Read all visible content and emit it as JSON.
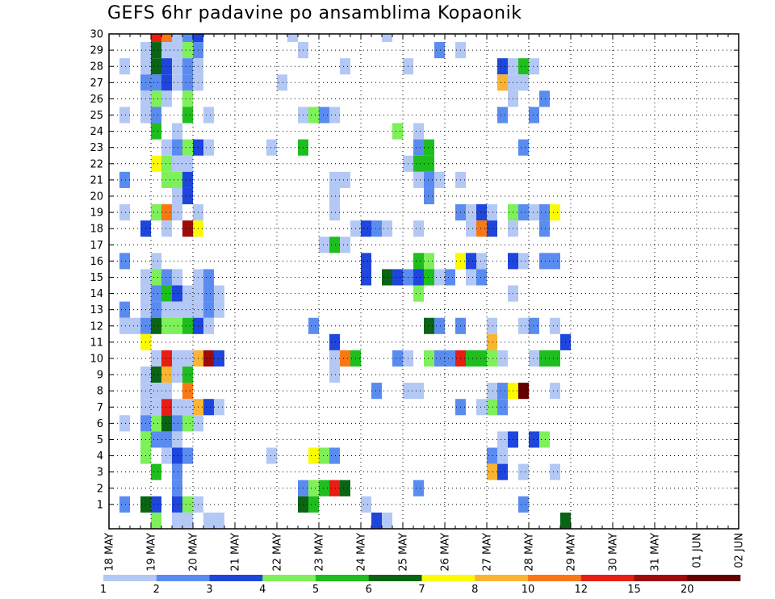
{
  "title": "GEFS 6hr padavine po ansamblima Kopaonik",
  "chart_data": {
    "type": "heatmap",
    "title": "GEFS 6hr padavine po ansamblima Kopaonik",
    "x_tick_labels": [
      "18 MAY",
      "19 MAY",
      "20 MAY",
      "21 MAY",
      "22 MAY",
      "23 MAY",
      "24 MAY",
      "25 MAY",
      "26 MAY",
      "27 MAY",
      "28 MAY",
      "29 MAY",
      "30 MAY",
      "31 MAY",
      "01 JUN",
      "02 JUN"
    ],
    "x_range_days": [
      0,
      15
    ],
    "y_tick_labels": [
      "1",
      "2",
      "3",
      "4",
      "5",
      "6",
      "7",
      "8",
      "9",
      "10",
      "11",
      "12",
      "13",
      "14",
      "15",
      "16",
      "17",
      "18",
      "19",
      "20",
      "21",
      "22",
      "23",
      "24",
      "25",
      "26",
      "27",
      "28",
      "29",
      "30"
    ],
    "y_range": [
      0,
      30
    ],
    "time_step_hours": 6,
    "grid": true,
    "legend": {
      "placement": "bottom",
      "boundaries": [
        "1",
        "2",
        "3",
        "4",
        "5",
        "6",
        "7",
        "8",
        "10",
        "12",
        "15",
        "20"
      ],
      "colors": [
        "#b4c8f5",
        "#5a8cf0",
        "#1e46dc",
        "#7df05a",
        "#1ebe1e",
        "#0a6414",
        "#fafa00",
        "#fab432",
        "#fa7814",
        "#e61e14",
        "#a00a0a",
        "#640000"
      ]
    },
    "cells_format": "[member, step_from_18MAY_00UTC(6h), level_index]",
    "cells": [
      [
        30,
        4,
        9
      ],
      [
        30,
        5,
        8
      ],
      [
        30,
        6,
        0
      ],
      [
        30,
        7,
        1
      ],
      [
        30,
        8,
        2
      ],
      [
        30,
        17,
        0
      ],
      [
        30,
        26,
        0
      ],
      [
        29,
        3,
        0
      ],
      [
        29,
        4,
        5
      ],
      [
        29,
        5,
        0
      ],
      [
        29,
        6,
        0
      ],
      [
        29,
        7,
        3
      ],
      [
        29,
        8,
        1
      ],
      [
        29,
        18,
        0
      ],
      [
        29,
        31,
        1
      ],
      [
        29,
        33,
        0
      ],
      [
        28,
        1,
        0
      ],
      [
        28,
        3,
        0
      ],
      [
        28,
        4,
        5
      ],
      [
        28,
        5,
        2
      ],
      [
        28,
        6,
        0
      ],
      [
        28,
        7,
        1
      ],
      [
        28,
        8,
        0
      ],
      [
        28,
        22,
        0
      ],
      [
        28,
        28,
        0
      ],
      [
        28,
        37,
        2
      ],
      [
        28,
        38,
        0
      ],
      [
        28,
        39,
        4
      ],
      [
        28,
        40,
        0
      ],
      [
        27,
        3,
        1
      ],
      [
        27,
        4,
        1
      ],
      [
        27,
        5,
        2
      ],
      [
        27,
        6,
        0
      ],
      [
        27,
        7,
        1
      ],
      [
        27,
        8,
        0
      ],
      [
        27,
        16,
        0
      ],
      [
        27,
        37,
        7
      ],
      [
        27,
        38,
        0
      ],
      [
        27,
        39,
        0
      ],
      [
        26,
        3,
        0
      ],
      [
        26,
        4,
        3
      ],
      [
        26,
        5,
        0
      ],
      [
        26,
        7,
        3
      ],
      [
        26,
        38,
        0
      ],
      [
        26,
        41,
        1
      ],
      [
        25,
        1,
        0
      ],
      [
        25,
        3,
        0
      ],
      [
        25,
        4,
        1
      ],
      [
        25,
        7,
        4
      ],
      [
        25,
        9,
        0
      ],
      [
        25,
        18,
        0
      ],
      [
        25,
        19,
        3
      ],
      [
        25,
        20,
        1
      ],
      [
        25,
        21,
        0
      ],
      [
        25,
        37,
        1
      ],
      [
        25,
        40,
        1
      ],
      [
        24,
        4,
        4
      ],
      [
        24,
        6,
        0
      ],
      [
        24,
        27,
        3
      ],
      [
        24,
        29,
        0
      ],
      [
        23,
        5,
        0
      ],
      [
        23,
        6,
        1
      ],
      [
        23,
        7,
        3
      ],
      [
        23,
        8,
        2
      ],
      [
        23,
        9,
        0
      ],
      [
        23,
        15,
        0
      ],
      [
        23,
        18,
        4
      ],
      [
        23,
        29,
        1
      ],
      [
        23,
        30,
        4
      ],
      [
        23,
        39,
        1
      ],
      [
        22,
        4,
        6
      ],
      [
        22,
        5,
        3
      ],
      [
        22,
        6,
        0
      ],
      [
        22,
        7,
        0
      ],
      [
        22,
        28,
        0
      ],
      [
        22,
        29,
        4
      ],
      [
        22,
        30,
        4
      ],
      [
        21,
        1,
        1
      ],
      [
        21,
        5,
        3
      ],
      [
        21,
        6,
        3
      ],
      [
        21,
        7,
        2
      ],
      [
        21,
        21,
        0
      ],
      [
        21,
        22,
        0
      ],
      [
        21,
        29,
        0
      ],
      [
        21,
        30,
        1
      ],
      [
        21,
        31,
        0
      ],
      [
        21,
        33,
        0
      ],
      [
        20,
        6,
        0
      ],
      [
        20,
        7,
        2
      ],
      [
        20,
        21,
        0
      ],
      [
        20,
        30,
        1
      ],
      [
        19,
        1,
        0
      ],
      [
        19,
        4,
        3
      ],
      [
        19,
        5,
        8
      ],
      [
        19,
        6,
        0
      ],
      [
        19,
        8,
        0
      ],
      [
        19,
        21,
        0
      ],
      [
        19,
        33,
        1
      ],
      [
        19,
        34,
        0
      ],
      [
        19,
        35,
        2
      ],
      [
        19,
        36,
        0
      ],
      [
        19,
        38,
        3
      ],
      [
        19,
        39,
        1
      ],
      [
        19,
        40,
        0
      ],
      [
        19,
        41,
        1
      ],
      [
        19,
        42,
        6
      ],
      [
        18,
        3,
        2
      ],
      [
        18,
        5,
        0
      ],
      [
        18,
        7,
        10
      ],
      [
        18,
        8,
        6
      ],
      [
        18,
        23,
        0
      ],
      [
        18,
        24,
        2
      ],
      [
        18,
        25,
        1
      ],
      [
        18,
        26,
        0
      ],
      [
        18,
        29,
        0
      ],
      [
        18,
        34,
        0
      ],
      [
        18,
        35,
        8
      ],
      [
        18,
        36,
        2
      ],
      [
        18,
        38,
        0
      ],
      [
        18,
        41,
        1
      ],
      [
        17,
        20,
        0
      ],
      [
        17,
        21,
        4
      ],
      [
        17,
        22,
        0
      ],
      [
        16,
        1,
        1
      ],
      [
        16,
        4,
        0
      ],
      [
        16,
        24,
        2
      ],
      [
        16,
        29,
        4
      ],
      [
        16,
        30,
        3
      ],
      [
        16,
        33,
        6
      ],
      [
        16,
        34,
        2
      ],
      [
        16,
        35,
        0
      ],
      [
        16,
        38,
        2
      ],
      [
        16,
        39,
        0
      ],
      [
        16,
        41,
        1
      ],
      [
        16,
        42,
        1
      ],
      [
        15,
        3,
        0
      ],
      [
        15,
        4,
        3
      ],
      [
        15,
        5,
        1
      ],
      [
        15,
        6,
        0
      ],
      [
        15,
        8,
        0
      ],
      [
        15,
        9,
        1
      ],
      [
        15,
        24,
        2
      ],
      [
        15,
        26,
        5
      ],
      [
        15,
        27,
        2
      ],
      [
        15,
        28,
        1
      ],
      [
        15,
        29,
        2
      ],
      [
        15,
        30,
        4
      ],
      [
        15,
        31,
        0
      ],
      [
        15,
        32,
        1
      ],
      [
        15,
        34,
        0
      ],
      [
        15,
        35,
        1
      ],
      [
        14,
        3,
        0
      ],
      [
        14,
        4,
        1
      ],
      [
        14,
        5,
        4
      ],
      [
        14,
        6,
        2
      ],
      [
        14,
        7,
        0
      ],
      [
        14,
        8,
        0
      ],
      [
        14,
        9,
        1
      ],
      [
        14,
        10,
        0
      ],
      [
        14,
        29,
        3
      ],
      [
        14,
        38,
        0
      ],
      [
        13,
        1,
        1
      ],
      [
        13,
        3,
        0
      ],
      [
        13,
        4,
        1
      ],
      [
        13,
        5,
        0
      ],
      [
        13,
        6,
        0
      ],
      [
        13,
        7,
        0
      ],
      [
        13,
        8,
        0
      ],
      [
        13,
        9,
        1
      ],
      [
        13,
        10,
        0
      ],
      [
        12,
        1,
        0
      ],
      [
        12,
        2,
        0
      ],
      [
        12,
        3,
        1
      ],
      [
        12,
        4,
        5
      ],
      [
        12,
        5,
        3
      ],
      [
        12,
        6,
        3
      ],
      [
        12,
        7,
        4
      ],
      [
        12,
        8,
        2
      ],
      [
        12,
        9,
        0
      ],
      [
        12,
        19,
        1
      ],
      [
        12,
        30,
        5
      ],
      [
        12,
        31,
        1
      ],
      [
        12,
        33,
        1
      ],
      [
        12,
        36,
        0
      ],
      [
        12,
        39,
        0
      ],
      [
        12,
        40,
        1
      ],
      [
        12,
        42,
        0
      ],
      [
        11,
        3,
        6
      ],
      [
        11,
        21,
        2
      ],
      [
        11,
        36,
        7
      ],
      [
        11,
        43,
        2
      ],
      [
        10,
        4,
        0
      ],
      [
        10,
        5,
        9
      ],
      [
        10,
        6,
        0
      ],
      [
        10,
        7,
        0
      ],
      [
        10,
        8,
        7
      ],
      [
        10,
        9,
        10
      ],
      [
        10,
        10,
        2
      ],
      [
        10,
        21,
        0
      ],
      [
        10,
        22,
        8
      ],
      [
        10,
        23,
        4
      ],
      [
        10,
        27,
        1
      ],
      [
        10,
        28,
        0
      ],
      [
        10,
        30,
        3
      ],
      [
        10,
        31,
        1
      ],
      [
        10,
        32,
        1
      ],
      [
        10,
        33,
        9
      ],
      [
        10,
        34,
        4
      ],
      [
        10,
        35,
        4
      ],
      [
        10,
        36,
        3
      ],
      [
        10,
        37,
        0
      ],
      [
        10,
        40,
        0
      ],
      [
        10,
        41,
        4
      ],
      [
        10,
        42,
        4
      ],
      [
        9,
        3,
        0
      ],
      [
        9,
        4,
        5
      ],
      [
        9,
        5,
        7
      ],
      [
        9,
        6,
        0
      ],
      [
        9,
        7,
        4
      ],
      [
        9,
        21,
        0
      ],
      [
        8,
        3,
        0
      ],
      [
        8,
        4,
        0
      ],
      [
        8,
        5,
        0
      ],
      [
        8,
        7,
        8
      ],
      [
        8,
        25,
        1
      ],
      [
        8,
        28,
        0
      ],
      [
        8,
        29,
        0
      ],
      [
        8,
        36,
        0
      ],
      [
        8,
        37,
        1
      ],
      [
        8,
        38,
        6
      ],
      [
        8,
        39,
        11
      ],
      [
        8,
        42,
        0
      ],
      [
        7,
        3,
        0
      ],
      [
        7,
        4,
        0
      ],
      [
        7,
        5,
        9
      ],
      [
        7,
        6,
        0
      ],
      [
        7,
        7,
        0
      ],
      [
        7,
        8,
        7
      ],
      [
        7,
        9,
        2
      ],
      [
        7,
        10,
        0
      ],
      [
        7,
        33,
        1
      ],
      [
        7,
        35,
        0
      ],
      [
        7,
        36,
        3
      ],
      [
        7,
        37,
        1
      ],
      [
        6,
        1,
        0
      ],
      [
        6,
        3,
        1
      ],
      [
        6,
        4,
        3
      ],
      [
        6,
        5,
        5
      ],
      [
        6,
        6,
        1
      ],
      [
        6,
        7,
        3
      ],
      [
        6,
        8,
        0
      ],
      [
        5,
        3,
        3
      ],
      [
        5,
        4,
        1
      ],
      [
        5,
        5,
        1
      ],
      [
        5,
        6,
        0
      ],
      [
        5,
        37,
        0
      ],
      [
        5,
        38,
        2
      ],
      [
        5,
        40,
        2
      ],
      [
        5,
        41,
        3
      ],
      [
        4,
        3,
        3
      ],
      [
        4,
        5,
        0
      ],
      [
        4,
        6,
        2
      ],
      [
        4,
        7,
        1
      ],
      [
        4,
        15,
        0
      ],
      [
        4,
        19,
        6
      ],
      [
        4,
        20,
        3
      ],
      [
        4,
        21,
        1
      ],
      [
        4,
        36,
        1
      ],
      [
        4,
        37,
        0
      ],
      [
        3,
        4,
        4
      ],
      [
        3,
        6,
        1
      ],
      [
        3,
        36,
        7
      ],
      [
        3,
        37,
        2
      ],
      [
        3,
        39,
        0
      ],
      [
        3,
        42,
        0
      ],
      [
        2,
        6,
        1
      ],
      [
        2,
        18,
        1
      ],
      [
        2,
        19,
        3
      ],
      [
        2,
        20,
        4
      ],
      [
        2,
        21,
        9
      ],
      [
        2,
        22,
        5
      ],
      [
        2,
        29,
        1
      ],
      [
        1,
        1,
        1
      ],
      [
        1,
        3,
        5
      ],
      [
        1,
        4,
        2
      ],
      [
        1,
        6,
        2
      ],
      [
        1,
        7,
        3
      ],
      [
        1,
        8,
        0
      ],
      [
        1,
        18,
        5
      ],
      [
        1,
        19,
        4
      ],
      [
        1,
        24,
        0
      ],
      [
        1,
        39,
        1
      ],
      [
        0,
        4,
        3
      ],
      [
        0,
        6,
        0
      ],
      [
        0,
        7,
        0
      ],
      [
        0,
        9,
        0
      ],
      [
        0,
        10,
        0
      ],
      [
        0,
        25,
        2
      ],
      [
        0,
        26,
        0
      ],
      [
        0,
        43,
        5
      ]
    ]
  }
}
